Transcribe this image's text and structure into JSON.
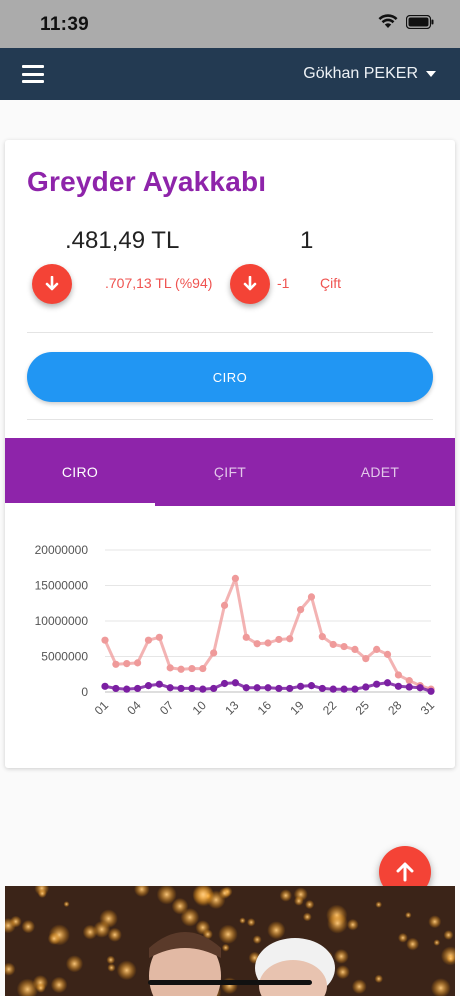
{
  "status_bar": {
    "time": "11:39"
  },
  "navbar": {
    "user_name": "Gökhan PEKER"
  },
  "summary": {
    "brand_name": "Greyder Ayakkabı",
    "revenue_value": ".481,49 TL",
    "pairs_value": "1",
    "revenue_delta": ".707,13 TL (%94)",
    "pairs_delta": "-1",
    "pairs_unit": "Çift",
    "primary_button": "CIRO"
  },
  "tabs": [
    {
      "label": "CIRO",
      "active": true
    },
    {
      "label": "ÇIFT",
      "active": false
    },
    {
      "label": "ADET",
      "active": false
    }
  ],
  "colors": {
    "brand_purple": "#8e24aa",
    "navbar": "#233a52",
    "primary_blue": "#2196f3",
    "danger_red": "#f44336",
    "series_pink": "#ef9a9a",
    "series_purple": "#7b1fa2"
  },
  "chart_data": {
    "type": "line",
    "x": [
      1,
      2,
      3,
      4,
      5,
      6,
      7,
      8,
      9,
      10,
      11,
      12,
      13,
      14,
      15,
      16,
      17,
      18,
      19,
      20,
      21,
      22,
      23,
      24,
      25,
      26,
      27,
      28,
      29,
      30,
      31
    ],
    "x_tick_labels": [
      "01",
      "04",
      "07",
      "10",
      "13",
      "16",
      "19",
      "22",
      "25",
      "28",
      "31"
    ],
    "y_tick_labels": [
      "20000000",
      "15000000",
      "10000000",
      "5000000",
      "0"
    ],
    "ylim": [
      0,
      20000000
    ],
    "grid": true,
    "series": [
      {
        "name": "",
        "color": "#ef9a9a",
        "values": [
          7300000,
          3900000,
          4000000,
          4100000,
          7300000,
          7700000,
          3400000,
          3200000,
          3300000,
          3300000,
          5500000,
          12200000,
          16000000,
          7700000,
          6800000,
          6900000,
          7400000,
          7500000,
          11600000,
          13400000,
          7800000,
          6700000,
          6400000,
          6000000,
          4700000,
          6000000,
          5300000,
          2400000,
          1600000,
          900000,
          400000
        ]
      },
      {
        "name": "",
        "color": "#7b1fa2",
        "values": [
          800000,
          500000,
          400000,
          500000,
          900000,
          1100000,
          600000,
          500000,
          500000,
          400000,
          500000,
          1200000,
          1300000,
          600000,
          600000,
          600000,
          500000,
          500000,
          800000,
          900000,
          500000,
          400000,
          400000,
          400000,
          700000,
          1100000,
          1300000,
          800000,
          700000,
          600000,
          100000
        ]
      }
    ]
  }
}
